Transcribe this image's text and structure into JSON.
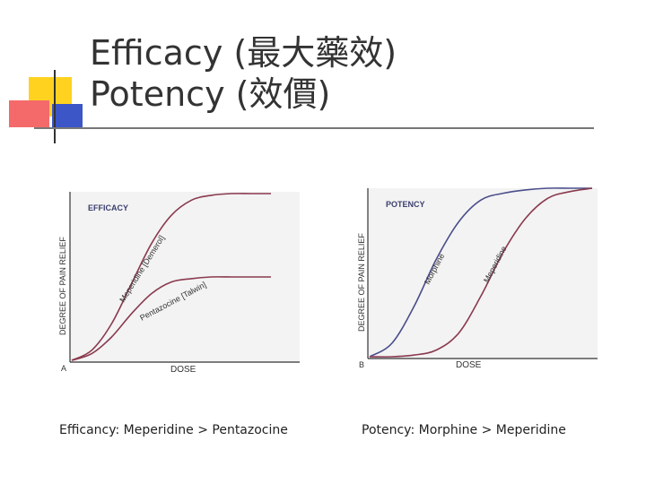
{
  "slide": {
    "title_line1": "Efficacy (最大藥效)",
    "title_line2": "Potency (效價)"
  },
  "chart_data": [
    {
      "type": "line",
      "panel_letter": "A",
      "title": "EFFICACY",
      "xlabel": "DOSE",
      "ylabel": "DEGREE OF PAIN RELIEF",
      "caption": "Efficancy: Meperidine > Pentazocine",
      "series": [
        {
          "name": "Meperidine [Demerol]",
          "color": "#8a3a4e",
          "x": [
            0,
            0.1,
            0.2,
            0.3,
            0.4,
            0.5,
            0.6,
            0.7,
            0.8,
            0.9,
            1.0
          ],
          "values": [
            0,
            0.06,
            0.22,
            0.46,
            0.7,
            0.87,
            0.96,
            0.99,
            1.0,
            1.0,
            1.0
          ]
        },
        {
          "name": "Pentazocine [Talwin]",
          "color": "#8a3a4e",
          "x": [
            0,
            0.1,
            0.2,
            0.3,
            0.4,
            0.5,
            0.6,
            0.7,
            0.8,
            0.9,
            1.0
          ],
          "values": [
            0,
            0.04,
            0.14,
            0.28,
            0.4,
            0.47,
            0.49,
            0.5,
            0.5,
            0.5,
            0.5
          ]
        }
      ]
    },
    {
      "type": "line",
      "panel_letter": "B",
      "title": "POTENCY",
      "xlabel": "DOSE",
      "ylabel": "DEGREE OF PAIN RELIEF",
      "caption": "Potency: Morphine > Meperidine",
      "series": [
        {
          "name": "Morphine",
          "color": "#4a4e8a",
          "x": [
            0,
            0.1,
            0.2,
            0.3,
            0.4,
            0.5,
            0.6,
            0.7,
            0.8,
            0.9,
            1.0
          ],
          "values": [
            0,
            0.08,
            0.3,
            0.58,
            0.8,
            0.93,
            0.97,
            0.99,
            1.0,
            1.0,
            1.0
          ]
        },
        {
          "name": "Meperidine",
          "color": "#8a3a4e",
          "x": [
            0,
            0.1,
            0.2,
            0.3,
            0.4,
            0.5,
            0.6,
            0.7,
            0.8,
            0.9,
            1.0
          ],
          "values": [
            0,
            0.0,
            0.01,
            0.04,
            0.14,
            0.36,
            0.62,
            0.82,
            0.94,
            0.98,
            1.0
          ]
        }
      ]
    }
  ]
}
